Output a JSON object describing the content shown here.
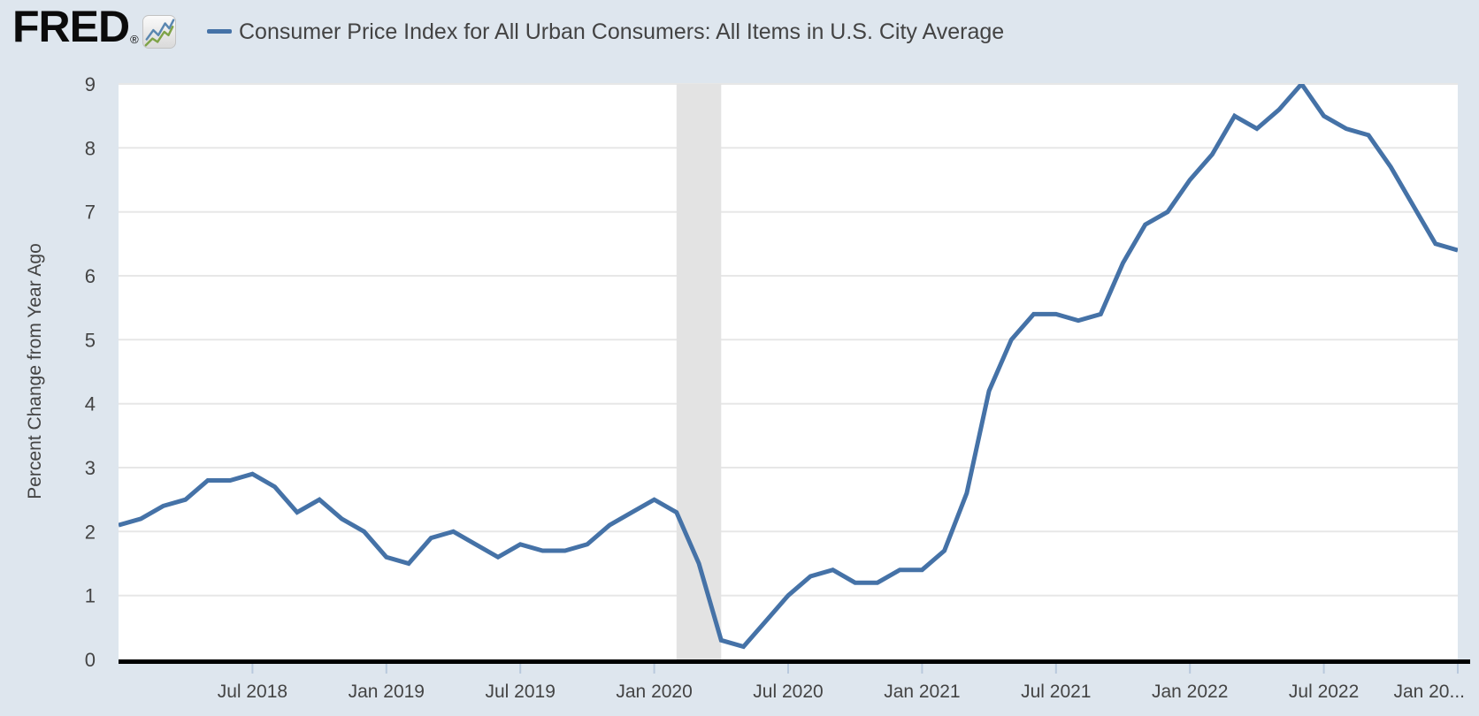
{
  "header": {
    "logo_text": "FRED",
    "registered_mark": "®",
    "logo_icon": "fred-sparkline-icon",
    "series_title": "Consumer Price Index for All Urban Consumers: All Items in U.S. City Average"
  },
  "colors": {
    "background": "#dee6ee",
    "plot_background": "#ffffff",
    "line": "#4572a7",
    "gridline": "#e7e7e7",
    "recession_band": "#e3e3e3",
    "axis": "#000000",
    "tick_mark": "#b9c9dd",
    "text": "#444444",
    "logo_icon_blue": "#5a87b0",
    "logo_icon_green": "#7fa348"
  },
  "chart_data": {
    "type": "line",
    "title": "Consumer Price Index for All Urban Consumers: All Items in U.S. City Average",
    "ylabel": "Percent Change from Year Ago",
    "xlabel": "",
    "ylim": [
      0,
      9
    ],
    "y_ticks": [
      0,
      1,
      2,
      3,
      4,
      5,
      6,
      7,
      8,
      9
    ],
    "frequency": "monthly",
    "x_start": "2018-01",
    "x_end": "2023-01",
    "x_ticks": [
      {
        "label": "Jul 2018",
        "m": 6
      },
      {
        "label": "Jan 2019",
        "m": 12
      },
      {
        "label": "Jul 2019",
        "m": 18
      },
      {
        "label": "Jan 2020",
        "m": 24
      },
      {
        "label": "Jul 2020",
        "m": 30
      },
      {
        "label": "Jan 2021",
        "m": 36
      },
      {
        "label": "Jul 2021",
        "m": 42
      },
      {
        "label": "Jan 2022",
        "m": 48
      },
      {
        "label": "Jul 2022",
        "m": 54
      },
      {
        "label": "Jan 20...",
        "m": 60
      }
    ],
    "recession_band": {
      "start_m": 25,
      "end_m": 27,
      "label": "COVID-19 recession shading (Feb 2020 - Apr 2020)"
    },
    "values": [
      2.1,
      2.2,
      2.4,
      2.5,
      2.8,
      2.8,
      2.9,
      2.7,
      2.3,
      2.5,
      2.2,
      2.0,
      1.6,
      1.5,
      1.9,
      2.0,
      1.8,
      1.6,
      1.8,
      1.7,
      1.7,
      1.8,
      2.1,
      2.3,
      2.5,
      2.3,
      1.5,
      0.3,
      0.2,
      0.6,
      1.0,
      1.3,
      1.4,
      1.2,
      1.2,
      1.4,
      1.4,
      1.7,
      2.6,
      4.2,
      5.0,
      5.4,
      5.4,
      5.3,
      5.4,
      6.2,
      6.8,
      7.0,
      7.5,
      7.9,
      8.5,
      8.3,
      8.6,
      9.0,
      8.5,
      8.3,
      8.2,
      7.7,
      7.1,
      6.5,
      6.4
    ],
    "grid": true,
    "legend_position": "top-left"
  }
}
